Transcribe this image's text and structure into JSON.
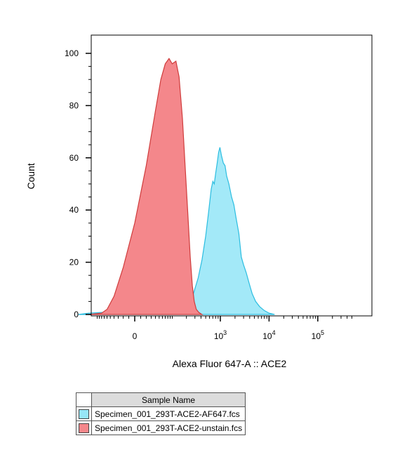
{
  "chart_data": {
    "type": "area",
    "ylabel": "Count",
    "xlabel": "Alexa Fluor 647-A :: ACE2",
    "x_scale": "biexponential",
    "ylim": [
      0,
      105
    ],
    "yticks": [
      0,
      20,
      40,
      60,
      80,
      100
    ],
    "xticks": [
      {
        "value": 0,
        "base": "0",
        "exp": ""
      },
      {
        "value": 1000,
        "base": "10",
        "exp": "3"
      },
      {
        "value": 10000,
        "base": "10",
        "exp": "4"
      },
      {
        "value": 100000,
        "base": "10",
        "exp": "5"
      }
    ],
    "series": [
      {
        "name": "Specimen_001_293T-ACE2-unstain.fcs",
        "fill": "#f4878b",
        "stroke": "#cf3c3c",
        "points": [
          [
            -150,
            0
          ],
          [
            -80,
            0.5
          ],
          [
            -60,
            2
          ],
          [
            -40,
            7
          ],
          [
            -20,
            18
          ],
          [
            0,
            35
          ],
          [
            20,
            57
          ],
          [
            40,
            78
          ],
          [
            55,
            90
          ],
          [
            70,
            96
          ],
          [
            85,
            98
          ],
          [
            100,
            96
          ],
          [
            120,
            97
          ],
          [
            140,
            91
          ],
          [
            165,
            75
          ],
          [
            190,
            55
          ],
          [
            215,
            38
          ],
          [
            240,
            22
          ],
          [
            265,
            11
          ],
          [
            290,
            5
          ],
          [
            320,
            2
          ],
          [
            360,
            0.8
          ],
          [
            420,
            0
          ]
        ]
      },
      {
        "name": "Specimen_001_293T-ACE2-AF647.fcs",
        "fill": "#96e6f7",
        "stroke": "#2bbde0",
        "points": [
          [
            -250,
            0
          ],
          [
            -150,
            0.5
          ],
          [
            -50,
            1
          ],
          [
            0,
            1
          ],
          [
            60,
            1.5
          ],
          [
            130,
            2.5
          ],
          [
            200,
            4
          ],
          [
            280,
            8
          ],
          [
            350,
            14
          ],
          [
            420,
            21
          ],
          [
            500,
            30
          ],
          [
            580,
            40
          ],
          [
            650,
            48
          ],
          [
            700,
            51
          ],
          [
            750,
            50
          ],
          [
            800,
            54
          ],
          [
            860,
            58
          ],
          [
            920,
            62
          ],
          [
            980,
            64
          ],
          [
            1050,
            61
          ],
          [
            1150,
            58
          ],
          [
            1250,
            57
          ],
          [
            1350,
            53
          ],
          [
            1500,
            50
          ],
          [
            1700,
            45
          ],
          [
            1900,
            42
          ],
          [
            2100,
            37
          ],
          [
            2400,
            31
          ],
          [
            2700,
            22
          ],
          [
            3000,
            19
          ],
          [
            3400,
            16
          ],
          [
            3900,
            12
          ],
          [
            4500,
            8
          ],
          [
            5300,
            5
          ],
          [
            6400,
            3
          ],
          [
            8000,
            1.5
          ],
          [
            10000,
            0.5
          ],
          [
            13000,
            0
          ]
        ]
      }
    ],
    "legend": {
      "header": "Sample Name",
      "entries": [
        {
          "label": "Specimen_001_293T-ACE2-AF647.fcs",
          "color": "#96e6f7"
        },
        {
          "label": "Specimen_001_293T-ACE2-unstain.fcs",
          "color": "#f4878b"
        }
      ]
    }
  }
}
